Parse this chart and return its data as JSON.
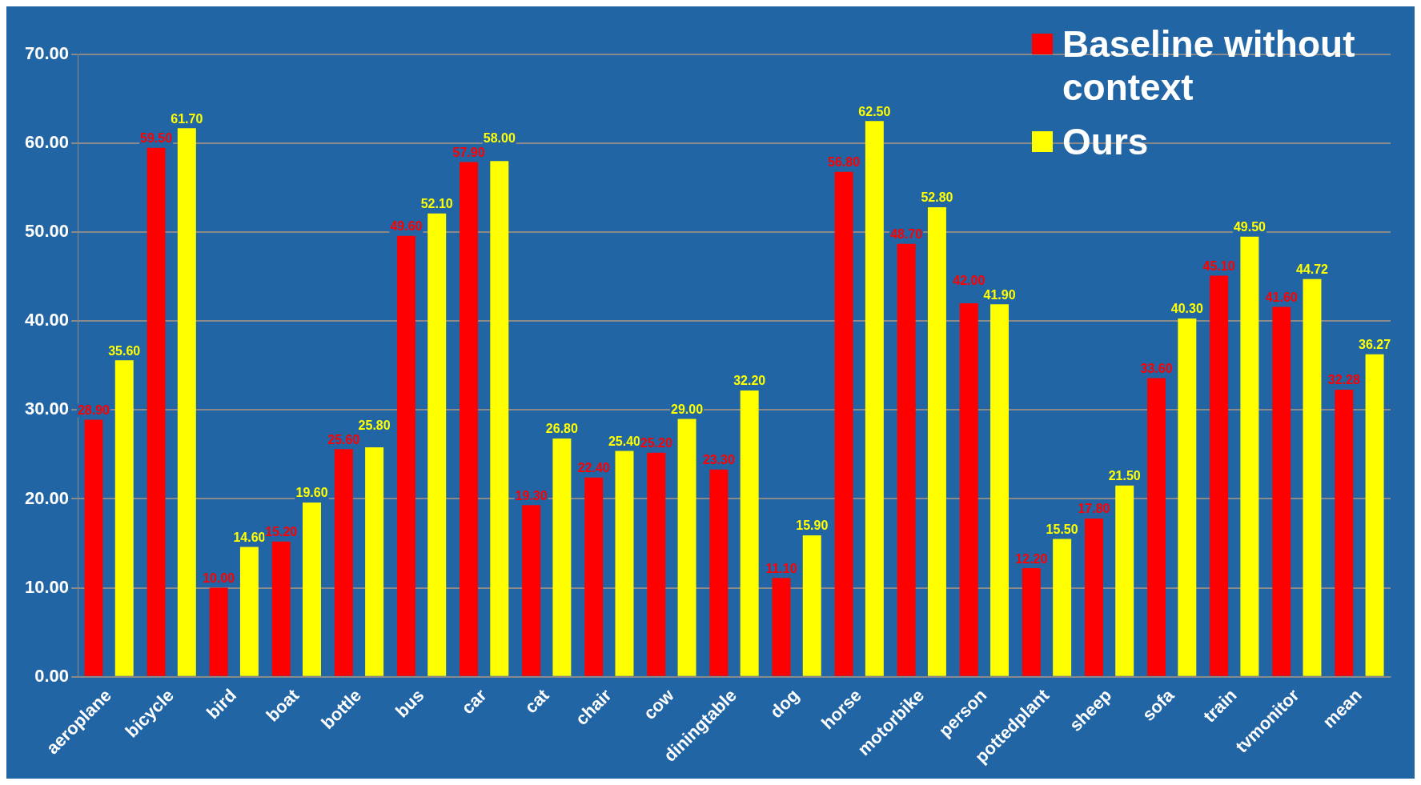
{
  "chart_data": {
    "type": "bar",
    "categories": [
      "aeroplane",
      "bicycle",
      "bird",
      "boat",
      "bottle",
      "bus",
      "car",
      "cat",
      "chair",
      "cow",
      "diningtable",
      "dog",
      "horse",
      "motorbike",
      "person",
      "pottedplant",
      "sheep",
      "sofa",
      "train",
      "tvmonitor",
      "mean"
    ],
    "series": [
      {
        "name": "Baseline without context",
        "color": "#ff0000",
        "values": [
          28.9,
          59.5,
          10.0,
          15.2,
          25.6,
          49.6,
          57.9,
          19.3,
          22.4,
          25.2,
          23.3,
          11.1,
          56.8,
          48.7,
          42.0,
          12.2,
          17.8,
          33.6,
          45.1,
          41.6,
          32.28
        ],
        "value_labels": [
          "28.90",
          "59.50",
          "10.00",
          "15.20",
          "25.60",
          "49.60",
          "57.90",
          "19.30",
          "22.40",
          "25.20",
          "23.30",
          "11.10",
          "56.80",
          "48.70",
          "42.00",
          "12.20",
          "17.80",
          "33.60",
          "45.10",
          "41.60",
          "32.28"
        ]
      },
      {
        "name": "Ours",
        "color": "#ffff00",
        "values": [
          35.6,
          61.7,
          14.6,
          19.6,
          25.8,
          52.1,
          58.0,
          26.8,
          25.4,
          29.0,
          32.2,
          15.9,
          62.5,
          52.8,
          41.9,
          15.5,
          21.5,
          40.3,
          49.5,
          44.72,
          36.27
        ],
        "value_labels": [
          "35.60",
          "61.70",
          "14.60",
          "19.60",
          "25.80",
          "52.10",
          "58.00",
          "26.80",
          "25.40",
          "29.00",
          "32.20",
          "15.90",
          "62.50",
          "52.80",
          "41.90",
          "15.50",
          "21.50",
          "40.30",
          "49.50",
          "44.72",
          "36.27"
        ]
      }
    ],
    "ylim": [
      0,
      70
    ],
    "yticks": [
      {
        "value": 0,
        "label": "0.00"
      },
      {
        "value": 10,
        "label": "10.00"
      },
      {
        "value": 20,
        "label": "20.00"
      },
      {
        "value": 30,
        "label": "30.00"
      },
      {
        "value": 40,
        "label": "40.00"
      },
      {
        "value": 50,
        "label": "50.00"
      },
      {
        "value": 60,
        "label": "60.00"
      },
      {
        "value": 70,
        "label": "70.00"
      }
    ],
    "grid": "y",
    "legend": "top right"
  }
}
